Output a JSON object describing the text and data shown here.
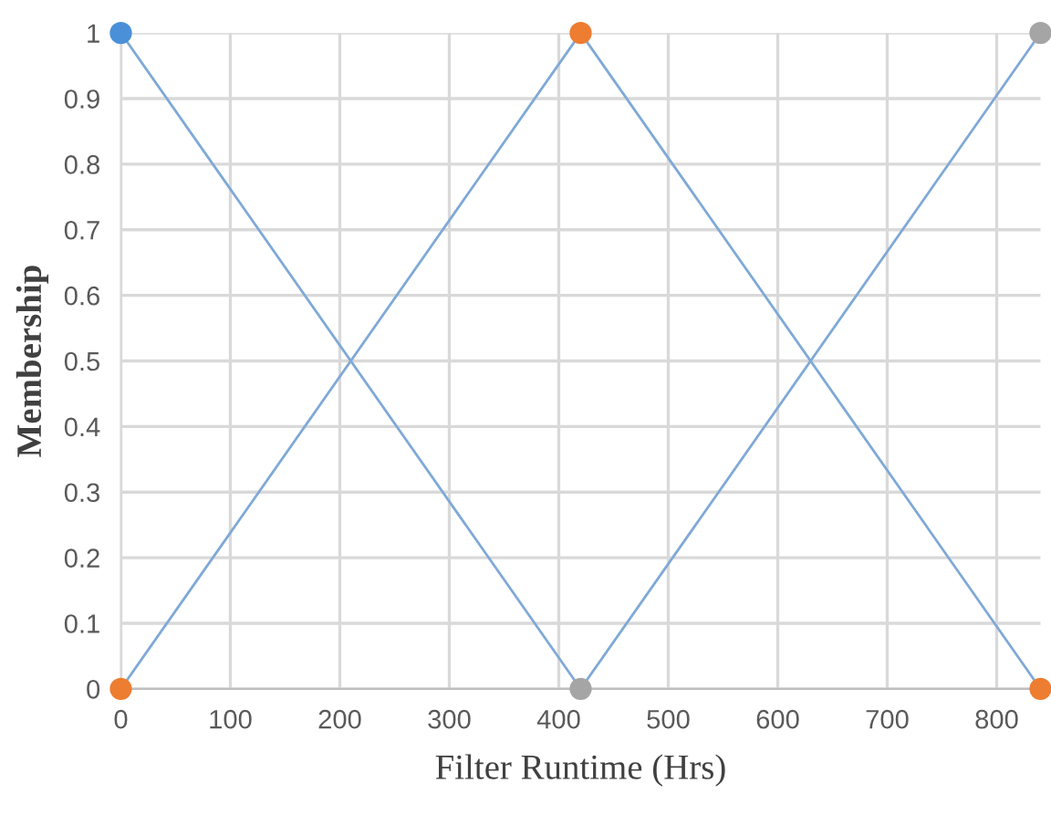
{
  "chart_data": {
    "type": "line",
    "xlabel": "Filter Runtime (Hrs)",
    "ylabel": "Membership",
    "xlim": [
      0,
      840
    ],
    "ylim": [
      0,
      1
    ],
    "xticks": [
      0,
      100,
      200,
      300,
      400,
      500,
      600,
      700,
      800
    ],
    "yticks": [
      0,
      0.1,
      0.2,
      0.3,
      0.4,
      0.5,
      0.6,
      0.7,
      0.8,
      0.9,
      1
    ],
    "grid": true,
    "legend": false,
    "series": [
      {
        "color": "#7fa9d6",
        "x": [
          0,
          420
        ],
        "values": [
          1,
          0
        ],
        "marker": "none"
      },
      {
        "color": "#7fa9d6",
        "x": [
          0,
          420,
          840
        ],
        "values": [
          0,
          1,
          0
        ],
        "marker": "none"
      },
      {
        "color": "#7fa9d6",
        "x": [
          420,
          840
        ],
        "values": [
          0,
          1
        ],
        "marker": "none"
      },
      {
        "type": "scatter",
        "color": "#4a90d9",
        "x": [
          0
        ],
        "values": [
          1
        ],
        "marker": "circle"
      },
      {
        "type": "scatter",
        "color": "#ed7d31",
        "x": [
          0,
          420,
          840
        ],
        "values": [
          0,
          1,
          0
        ],
        "marker": "circle"
      },
      {
        "type": "scatter",
        "color": "#a5a5a5",
        "x": [
          420,
          840
        ],
        "values": [
          0,
          1
        ],
        "marker": "circle"
      }
    ]
  }
}
